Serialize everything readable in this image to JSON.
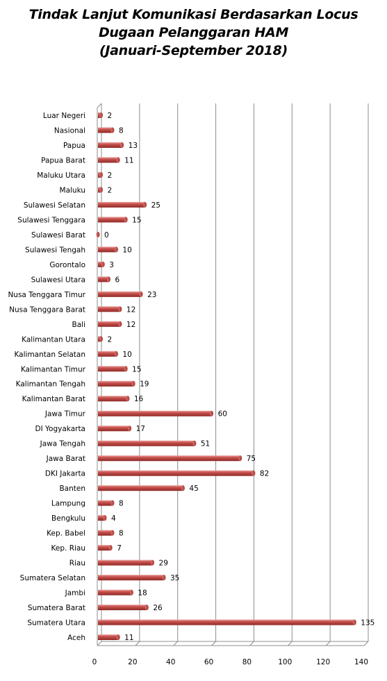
{
  "chart_data": {
    "type": "bar",
    "orientation": "horizontal",
    "title_lines": [
      "Tindak Lanjut Komunikasi Berdasarkan Locus",
      "Dugaan Pelanggaran HAM",
      "(Januari-September 2018)"
    ],
    "categories": [
      "Luar Negeri",
      "Nasional",
      "Papua",
      "Papua Barat",
      "Maluku Utara",
      "Maluku",
      "Sulawesi Selatan",
      "Sulawesi Tenggara",
      "Sulawesi Barat",
      "Sulawesi Tengah",
      "Gorontalo",
      "Sulawesi Utara",
      "Nusa Tenggara Timur",
      "Nusa Tenggara Barat",
      "Bali",
      "Kalimantan Utara",
      "Kalimantan Selatan",
      "Kalimantan Timur",
      "Kalimantan Tengah",
      "Kalimantan Barat",
      "Jawa Timur",
      "DI Yogyakarta",
      "Jawa Tengah",
      "Jawa Barat",
      "DKI Jakarta",
      "Banten",
      "Lampung",
      "Bengkulu",
      "Kep. Babel",
      "Kep. Riau",
      "Riau",
      "Sumatera Selatan",
      "Jambi",
      "Sumatera Barat",
      "Sumatera Utara",
      "Aceh"
    ],
    "values": [
      2,
      8,
      13,
      11,
      2,
      2,
      25,
      15,
      0,
      10,
      3,
      6,
      23,
      12,
      12,
      2,
      10,
      15,
      19,
      16,
      60,
      17,
      51,
      75,
      82,
      45,
      8,
      4,
      8,
      7,
      29,
      35,
      18,
      26,
      135,
      11
    ],
    "xlim": [
      0,
      140
    ],
    "xticks": [
      0,
      20,
      40,
      60,
      80,
      100,
      120,
      140
    ],
    "grid": true,
    "legend": "none",
    "bar_color": "#c0504d",
    "grid_color": "#8c8c8c"
  }
}
